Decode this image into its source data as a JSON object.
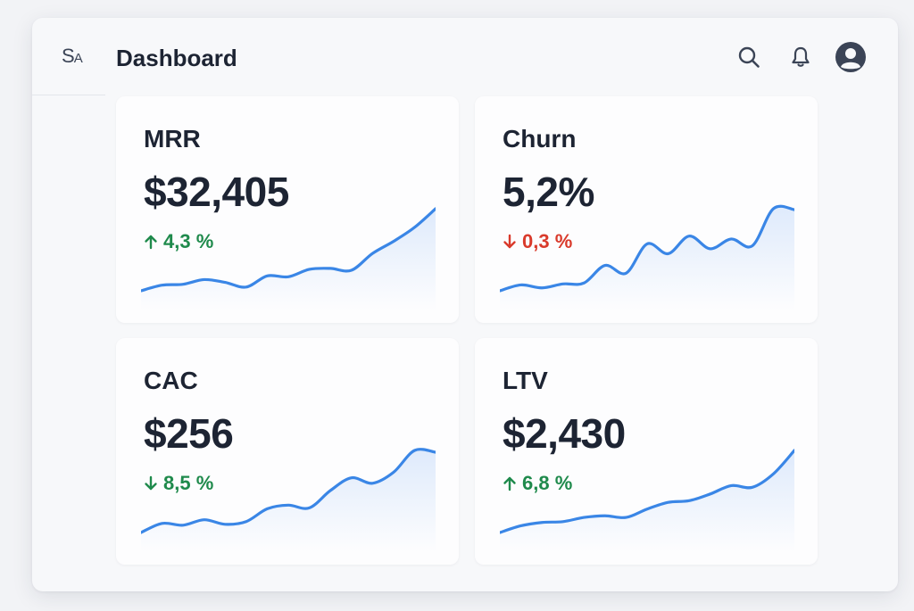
{
  "app": {
    "logo_main": "S",
    "logo_sub": "A",
    "title": "Dashboard"
  },
  "header_icons": [
    "search-icon",
    "bell-icon",
    "user-avatar-icon"
  ],
  "colors": {
    "positive": "#1f8a4c",
    "negative": "#d93a2b",
    "line": "#3a86e6",
    "area": "#dbe8fb"
  },
  "cards": [
    {
      "title": "MRR",
      "value": "$32,405",
      "delta": "4,3 %",
      "direction": "up",
      "tone": "positive",
      "trend": [
        2,
        8,
        9,
        14,
        11,
        6,
        18,
        17,
        25,
        26,
        24,
        42,
        55,
        70,
        90
      ]
    },
    {
      "title": "Churn",
      "value": "5,2%",
      "delta": "0,3 %",
      "direction": "down",
      "tone": "negative",
      "trend": [
        2,
        8,
        5,
        9,
        10,
        28,
        20,
        50,
        40,
        58,
        45,
        55,
        48,
        86,
        85
      ]
    },
    {
      "title": "CAC",
      "value": "$256",
      "delta": "8,5 %",
      "direction": "down",
      "tone": "positive",
      "trend": [
        2,
        12,
        10,
        16,
        11,
        14,
        28,
        32,
        29,
        48,
        62,
        56,
        68,
        92,
        90
      ]
    },
    {
      "title": "LTV",
      "value": "$2,430",
      "delta": "6,8 %",
      "direction": "up",
      "tone": "positive",
      "trend": [
        2,
        10,
        14,
        15,
        20,
        22,
        20,
        30,
        38,
        40,
        48,
        58,
        56,
        72,
        100
      ]
    }
  ]
}
